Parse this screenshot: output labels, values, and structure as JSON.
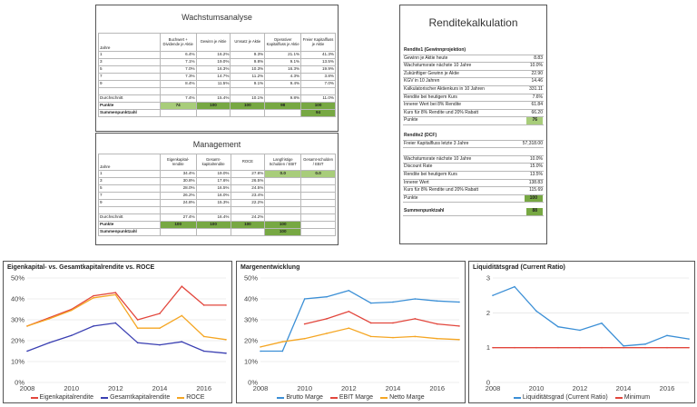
{
  "wachstum": {
    "title": "Wachstumsanalyse",
    "headers": [
      "Jahre",
      "Buchwert + Dividende je Aktie",
      "Gewinn je Aktie",
      "Umsatz je Aktie",
      "Operativer Kapitalfluss je Aktie",
      "Freier Kapitalfluss je Aktie"
    ],
    "rows": [
      [
        "1",
        "6.4%",
        "16.2%",
        "9.3%",
        "21.1%",
        "41.3%"
      ],
      [
        "3",
        "7.1%",
        "19.0%",
        "9.8%",
        "9.1%",
        "13.5%"
      ],
      [
        "5",
        "7.0%",
        "16.3%",
        "10.3%",
        "16.3%",
        "19.9%"
      ],
      [
        "7",
        "7.3%",
        "14.7%",
        "11.2%",
        "4.3%",
        "3.8%"
      ],
      [
        "9",
        "8.4%",
        "11.5%",
        "9.1%",
        "9.4%",
        "7.0%"
      ]
    ],
    "avg_label": "Durchschnitt",
    "avg": [
      "7.4%",
      "15.4%",
      "10.1%",
      "9.8%",
      "11.0%"
    ],
    "points_label": "Punkte",
    "points": [
      "74",
      "100",
      "100",
      "98",
      "100"
    ],
    "sum_label": "Summenpunktzahl",
    "sum": "94"
  },
  "management": {
    "title": "Management",
    "headers": [
      "Jahre",
      "Eigenkapital-rendite",
      "Gesamt-kapitalrendite",
      "ROCE",
      "Langfristige Schulden / EBIT",
      "Gesamt-schulden / EBIT"
    ],
    "rows": [
      [
        "1",
        "34.4%",
        "19.0%",
        "27.8%"
      ],
      [
        "3",
        "30.8%",
        "17.6%",
        "26.5%"
      ],
      [
        "5",
        "28.0%",
        "16.5%",
        "24.5%"
      ],
      [
        "7",
        "26.2%",
        "16.0%",
        "23.4%"
      ],
      [
        "9",
        "24.8%",
        "15.3%",
        "22.2%"
      ]
    ],
    "debt": [
      "0.0",
      "0.0"
    ],
    "avg_label": "Durchschnitt",
    "avg": [
      "27.4%",
      "16.4%",
      "24.2%"
    ],
    "points_label": "Punkte",
    "points": [
      "100",
      "100",
      "100",
      "100"
    ],
    "sum_label": "Summenpunktzahl",
    "sum": "100"
  },
  "rendite": {
    "title": "Renditekalkulation",
    "r1_title": "Rendite1 (Gewinnprojektion)",
    "r1_rows": [
      [
        "Gewinn je Aktie heute",
        "8.83"
      ],
      [
        "Wachstumsrate nächste 10 Jahre",
        "10.0%"
      ],
      [
        "Zukünftiger Gewinn je Aktie",
        "22.90"
      ],
      [
        "KGV in 10 Jahren",
        "14.46"
      ],
      [
        "Kalkulatorischer Aktienkurs in 10 Jahren",
        "331.11"
      ],
      [
        "Rendite bei heutigem Kurs",
        "7.6%"
      ],
      [
        "Innerer Wert bei 8% Rendite",
        "61.84"
      ],
      [
        "Kurs für 8% Rendite und 20% Rabatt",
        "66.20"
      ]
    ],
    "r1_points_label": "Punkte",
    "r1_points": "76",
    "r2_title": "Rendite2 (DCF)",
    "r2_rows": [
      [
        "Freier Kapitalfluss letzte 3 Jahre",
        "57,318.00"
      ],
      [
        "",
        ""
      ],
      [
        "Wachstumsrate nächste 10 Jahre",
        "10.0%"
      ],
      [
        "Discount Rate",
        "15.0%"
      ],
      [
        "Rendite bei heutigem Kurs",
        "13.5%"
      ],
      [
        "Innerer Wert",
        "138.83"
      ],
      [
        "Kurs für 8% Rendite und 20% Rabatt",
        "115.69"
      ]
    ],
    "r2_points_label": "Punkte",
    "r2_points": "100",
    "sum_label": "Summenpunktzahl",
    "sum": "88"
  },
  "colors": {
    "red": "#e2463c",
    "blue": "#3a3fb2",
    "orange": "#f5a623",
    "lightblue": "#3b8fd6",
    "green_dark": "#77a843",
    "green_light": "#a8cd7a"
  },
  "chart_data": [
    {
      "type": "line",
      "title": "Eigenkapital- vs. Gesamtkapitalrendite vs. ROCE",
      "x": [
        2008,
        2009,
        2010,
        2011,
        2012,
        2013,
        2014,
        2015,
        2016,
        2017
      ],
      "xticks": [
        "2008",
        "2010",
        "2012",
        "2014",
        "2016"
      ],
      "yticks": [
        "0%",
        "10%",
        "20%",
        "30%",
        "40%",
        "50%"
      ],
      "ylim": [
        0,
        50
      ],
      "series": [
        {
          "name": "Eigenkapitalrendite",
          "color": "#e2463c",
          "values": [
            27,
            31,
            35,
            41.5,
            43,
            30,
            33,
            46,
            37,
            37
          ]
        },
        {
          "name": "Gesamtkapitalrendite",
          "color": "#3a3fb2",
          "values": [
            15,
            19,
            22.5,
            27,
            28.5,
            19,
            18,
            19.5,
            15,
            14
          ]
        },
        {
          "name": "ROCE",
          "color": "#f5a623",
          "values": [
            27,
            30.5,
            34.5,
            40.5,
            42,
            26,
            26,
            32,
            22,
            20.5
          ]
        }
      ]
    },
    {
      "type": "line",
      "title": "Margenentwicklung",
      "x": [
        2008,
        2009,
        2010,
        2011,
        2012,
        2013,
        2014,
        2015,
        2016,
        2017
      ],
      "xticks": [
        "2008",
        "2010",
        "2012",
        "2014",
        "2016"
      ],
      "yticks": [
        "0%",
        "10%",
        "20%",
        "30%",
        "40%",
        "50%"
      ],
      "ylim": [
        0,
        50
      ],
      "series": [
        {
          "name": "Brutto Marge",
          "color": "#3b8fd6",
          "values": [
            15,
            15,
            40,
            41,
            44,
            38,
            38.5,
            40,
            39,
            38.5
          ]
        },
        {
          "name": "EBIT Marge",
          "color": "#e2463c",
          "values": [
            null,
            null,
            28,
            30.5,
            34,
            28.5,
            28.5,
            30.5,
            28,
            27
          ]
        },
        {
          "name": "Netto Marge",
          "color": "#f5a623",
          "values": [
            17,
            19.5,
            21,
            23.5,
            26,
            22,
            21.5,
            22,
            21,
            20.5
          ]
        }
      ]
    },
    {
      "type": "line",
      "title": "Liquiditätsgrad (Current Ratio)",
      "x": [
        2008,
        2009,
        2010,
        2011,
        2012,
        2013,
        2014,
        2015,
        2016,
        2017
      ],
      "xticks": [
        "2008",
        "2010",
        "2012",
        "2014",
        "2016"
      ],
      "yticks": [
        "0",
        "1",
        "2",
        "3"
      ],
      "ylim": [
        0,
        3
      ],
      "series": [
        {
          "name": "Liquiditätsgrad (Current Ratio)",
          "color": "#3b8fd6",
          "values": [
            2.5,
            2.75,
            2.05,
            1.6,
            1.5,
            1.7,
            1.05,
            1.1,
            1.35,
            1.25
          ]
        },
        {
          "name": "Minimum",
          "color": "#e2463c",
          "values": [
            1,
            1,
            1,
            1,
            1,
            1,
            1,
            1,
            1,
            1
          ]
        }
      ]
    }
  ]
}
